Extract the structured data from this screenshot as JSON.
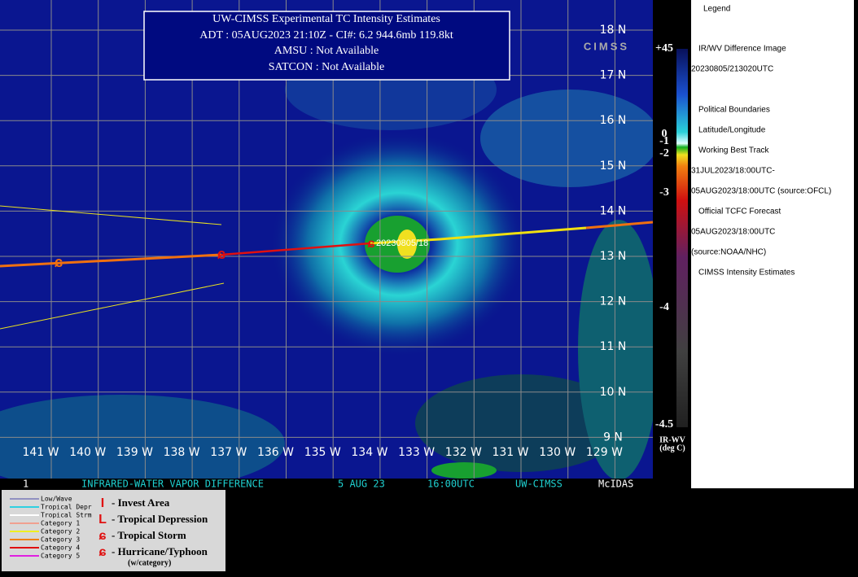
{
  "header": {
    "title": "UW-CIMSS Experimental TC Intensity Estimates",
    "adt": "ADT : 05AUG2023 21:10Z -  CI#: 6.2   944.6mb   119.8kt",
    "amsu": "AMSU : Not Available",
    "satcon": "SATCON : Not Available"
  },
  "map": {
    "storm_label": "20230805/18",
    "latitudes": [
      "18 N",
      "17 N",
      "16 N",
      "15 N",
      "14 N",
      "13 N",
      "12 N",
      "11 N",
      "10 N",
      "9 N"
    ],
    "longitudes": [
      "141 W",
      "140 W",
      "139 W",
      "138 W",
      "137 W",
      "136 W",
      "135 W",
      "134 W",
      "133 W",
      "132 W",
      "131 W",
      "130 W",
      "129 W"
    ]
  },
  "footer": {
    "frame": "1",
    "product": "INFRARED-WATER VAPOR DIFFERENCE",
    "date": "5 AUG 23",
    "time": "16:00UTC",
    "source": "UW-CIMSS",
    "software": "McIDAS"
  },
  "colorbar": {
    "labels": [
      "+45",
      "0",
      "-1",
      "-2",
      "-3",
      "-4",
      "-4.5"
    ],
    "title": "IR-WV",
    "unit": "(deg C)"
  },
  "legend": {
    "title": "Legend",
    "items": [
      "IR/WV Difference Image",
      "20230805/213020UTC",
      "Political Boundaries",
      "Latitude/Longitude",
      "Working Best Track",
      "31JUL2023/18:00UTC-",
      "05AUG2023/18:00UTC    (source:OFCL)",
      "Official TCFC Forecast",
      "05AUG2023/18:00UTC",
      "(source:NOAA/NHC)",
      "CIMSS Intensity Estimates"
    ]
  },
  "storm_key": {
    "lines": [
      "Low/Wave",
      "Tropical Depr",
      "Tropical Strm",
      "Category 1",
      "Category 2",
      "Category 3",
      "Category 4",
      "Category 5"
    ],
    "symbols": [
      "- Invest Area",
      "- Tropical Depression",
      "- Tropical Storm",
      "- Hurricane/Typhoon"
    ],
    "note": "(w/category)"
  }
}
